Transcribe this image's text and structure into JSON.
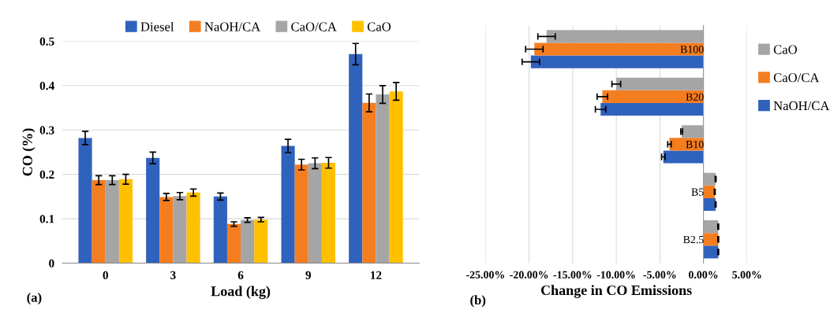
{
  "chart_data": [
    {
      "type": "bar",
      "xlabel": "Load (kg)",
      "ylabel": "CO (%)",
      "categories": [
        "0",
        "3",
        "6",
        "9",
        "12"
      ],
      "series": [
        {
          "name": "Diesel",
          "color": "#2f62bd",
          "values": [
            0.282,
            0.237,
            0.15,
            0.264,
            0.471
          ],
          "errors": [
            0.015,
            0.013,
            0.008,
            0.015,
            0.024
          ]
        },
        {
          "name": "NaOH/CA",
          "color": "#f47d20",
          "values": [
            0.187,
            0.149,
            0.088,
            0.222,
            0.361
          ],
          "errors": [
            0.01,
            0.008,
            0.005,
            0.012,
            0.02
          ]
        },
        {
          "name": "CaO/CA",
          "color": "#a5a5a5",
          "values": [
            0.187,
            0.151,
            0.097,
            0.225,
            0.38
          ],
          "errors": [
            0.01,
            0.008,
            0.005,
            0.012,
            0.02
          ]
        },
        {
          "name": "CaO",
          "color": "#ffc000",
          "values": [
            0.189,
            0.159,
            0.098,
            0.226,
            0.387
          ],
          "errors": [
            0.011,
            0.008,
            0.005,
            0.012,
            0.02
          ]
        }
      ],
      "ylim": [
        0,
        0.5
      ],
      "yticks": [
        0,
        0.1,
        0.2,
        0.3,
        0.4,
        0.5
      ],
      "grid": "y",
      "legend": "top",
      "annotations": [
        "(a)"
      ]
    },
    {
      "type": "bar",
      "orientation": "horizontal",
      "xlabel": "Change in CO Emissions",
      "categories": [
        "B100",
        "B20",
        "B10",
        "B5",
        "B2.5"
      ],
      "series": [
        {
          "name": "NaOH/CA",
          "color": "#2f62bd",
          "values": [
            -19.8,
            -11.8,
            -4.6,
            1.4,
            1.7
          ],
          "errors": [
            1.0,
            0.6,
            0.2,
            0.05,
            0.05
          ]
        },
        {
          "name": "CaO/CA",
          "color": "#f47d20",
          "values": [
            -19.4,
            -11.6,
            -3.9,
            1.3,
            1.7
          ],
          "errors": [
            1.0,
            0.6,
            0.2,
            0.05,
            0.05
          ]
        },
        {
          "name": "CaO",
          "color": "#a5a5a5",
          "values": [
            -18.0,
            -10.0,
            -2.5,
            1.4,
            1.7
          ],
          "errors": [
            1.0,
            0.5,
            0.1,
            0.05,
            0.05
          ]
        }
      ],
      "xlim": [
        -25,
        5
      ],
      "xticks": [
        {
          "value": -25,
          "label": "-25.00%"
        },
        {
          "value": -20,
          "label": "-20.00%"
        },
        {
          "value": -15,
          "label": "-15.00%"
        },
        {
          "value": -10,
          "label": "-10.00%"
        },
        {
          "value": -5,
          "label": "-5.00%"
        },
        {
          "value": 0,
          "label": "0.00%"
        },
        {
          "value": 5,
          "label": "5.00%"
        }
      ],
      "grid": "x",
      "legend": "right",
      "annotations": [
        "(b)"
      ]
    }
  ]
}
